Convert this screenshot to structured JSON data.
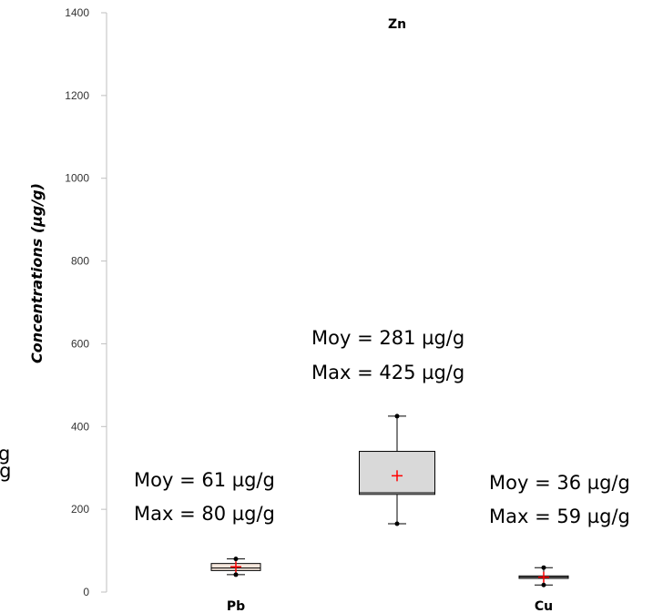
{
  "chart_data": {
    "type": "box",
    "ylabel": "Concentrations (µg/g)",
    "ylim": [
      0,
      1400
    ],
    "yticks": [
      0,
      200,
      400,
      600,
      800,
      1000,
      1200,
      1400
    ],
    "categories": [
      "Pb",
      "Zn",
      "Cu"
    ],
    "boxes": [
      {
        "category": "Pb",
        "min": 42,
        "q1": 52,
        "median": 58,
        "q3": 69,
        "max": 80,
        "mean": 61,
        "fill": "#f5e6dc"
      },
      {
        "category": "Zn",
        "min": 165,
        "q1": 236,
        "median": 240,
        "q3": 340,
        "max": 425,
        "mean": 281,
        "fill": "#d9d9d9"
      },
      {
        "category": "Cu",
        "min": 17,
        "q1": 33,
        "median": 36,
        "q3": 39,
        "max": 59,
        "mean": 36,
        "fill": "#f2f2f2"
      }
    ],
    "annotations": [
      {
        "category": "Pb",
        "lines": [
          "Moy = 61 µg/g",
          "Max = 80 µg/g"
        ]
      },
      {
        "category": "Zn",
        "lines": [
          "Moy = 281 µg/g",
          "Max = 425 µg/g"
        ]
      },
      {
        "category": "Cu",
        "lines": [
          "Moy = 36 µg/g",
          "Max = 59 µg/g"
        ]
      }
    ],
    "left_clipped_text": [
      "g",
      "/g"
    ],
    "mean_marker_color": "#ff0000"
  }
}
